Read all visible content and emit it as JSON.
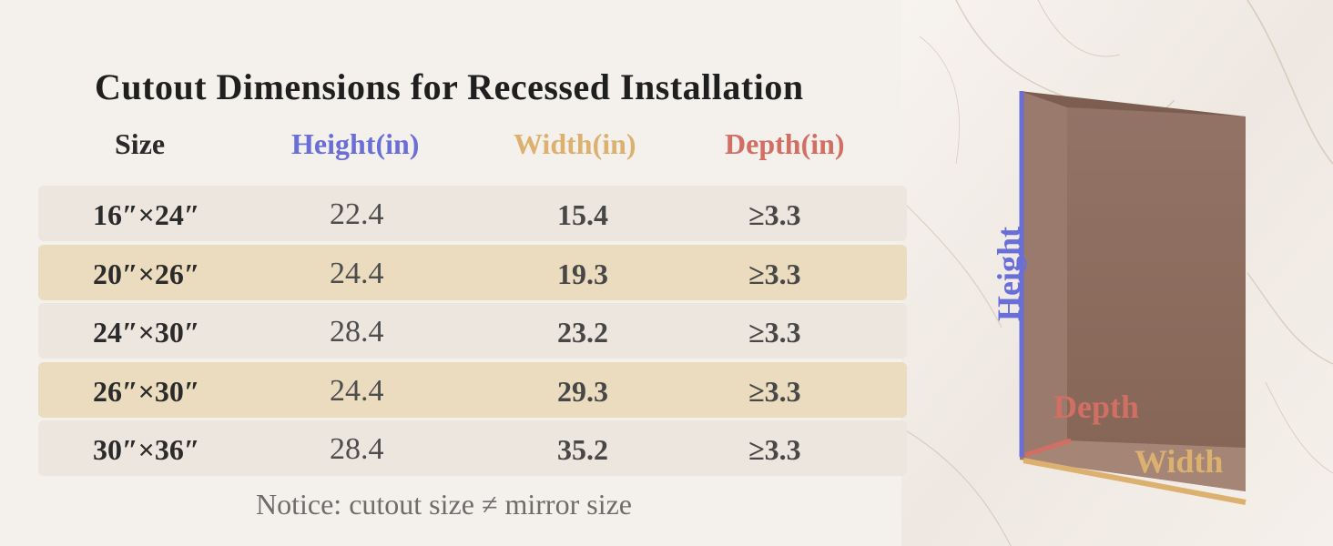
{
  "title": "Cutout Dimensions for Recessed Installation",
  "headers": {
    "size": "Size",
    "height": "Height(in)",
    "width": "Width(in)",
    "depth": "Depth(in)"
  },
  "rows": [
    {
      "size": "16″×24″",
      "height": "22.4",
      "width": "15.4",
      "depth": "≥3.3"
    },
    {
      "size": "20″×26″",
      "height": "24.4",
      "width": "19.3",
      "depth": "≥3.3"
    },
    {
      "size": "24″×30″",
      "height": "28.4",
      "width": "23.2",
      "depth": "≥3.3"
    },
    {
      "size": "26″×30″",
      "height": "24.4",
      "width": "29.3",
      "depth": "≥3.3"
    },
    {
      "size": "30″×36″",
      "height": "28.4",
      "width": "35.2",
      "depth": "≥3.3"
    }
  ],
  "notice": "Notice: cutout size ≠ mirror size",
  "diagram": {
    "height_label": "Height",
    "depth_label": "Depth",
    "width_label": "Width"
  },
  "colors": {
    "height": "#6a6fd8",
    "width": "#dcb06f",
    "depth": "#d26f64",
    "row_light": "#ede6df",
    "row_tan": "#ecdcbf",
    "niche": "#8b6a5c"
  }
}
